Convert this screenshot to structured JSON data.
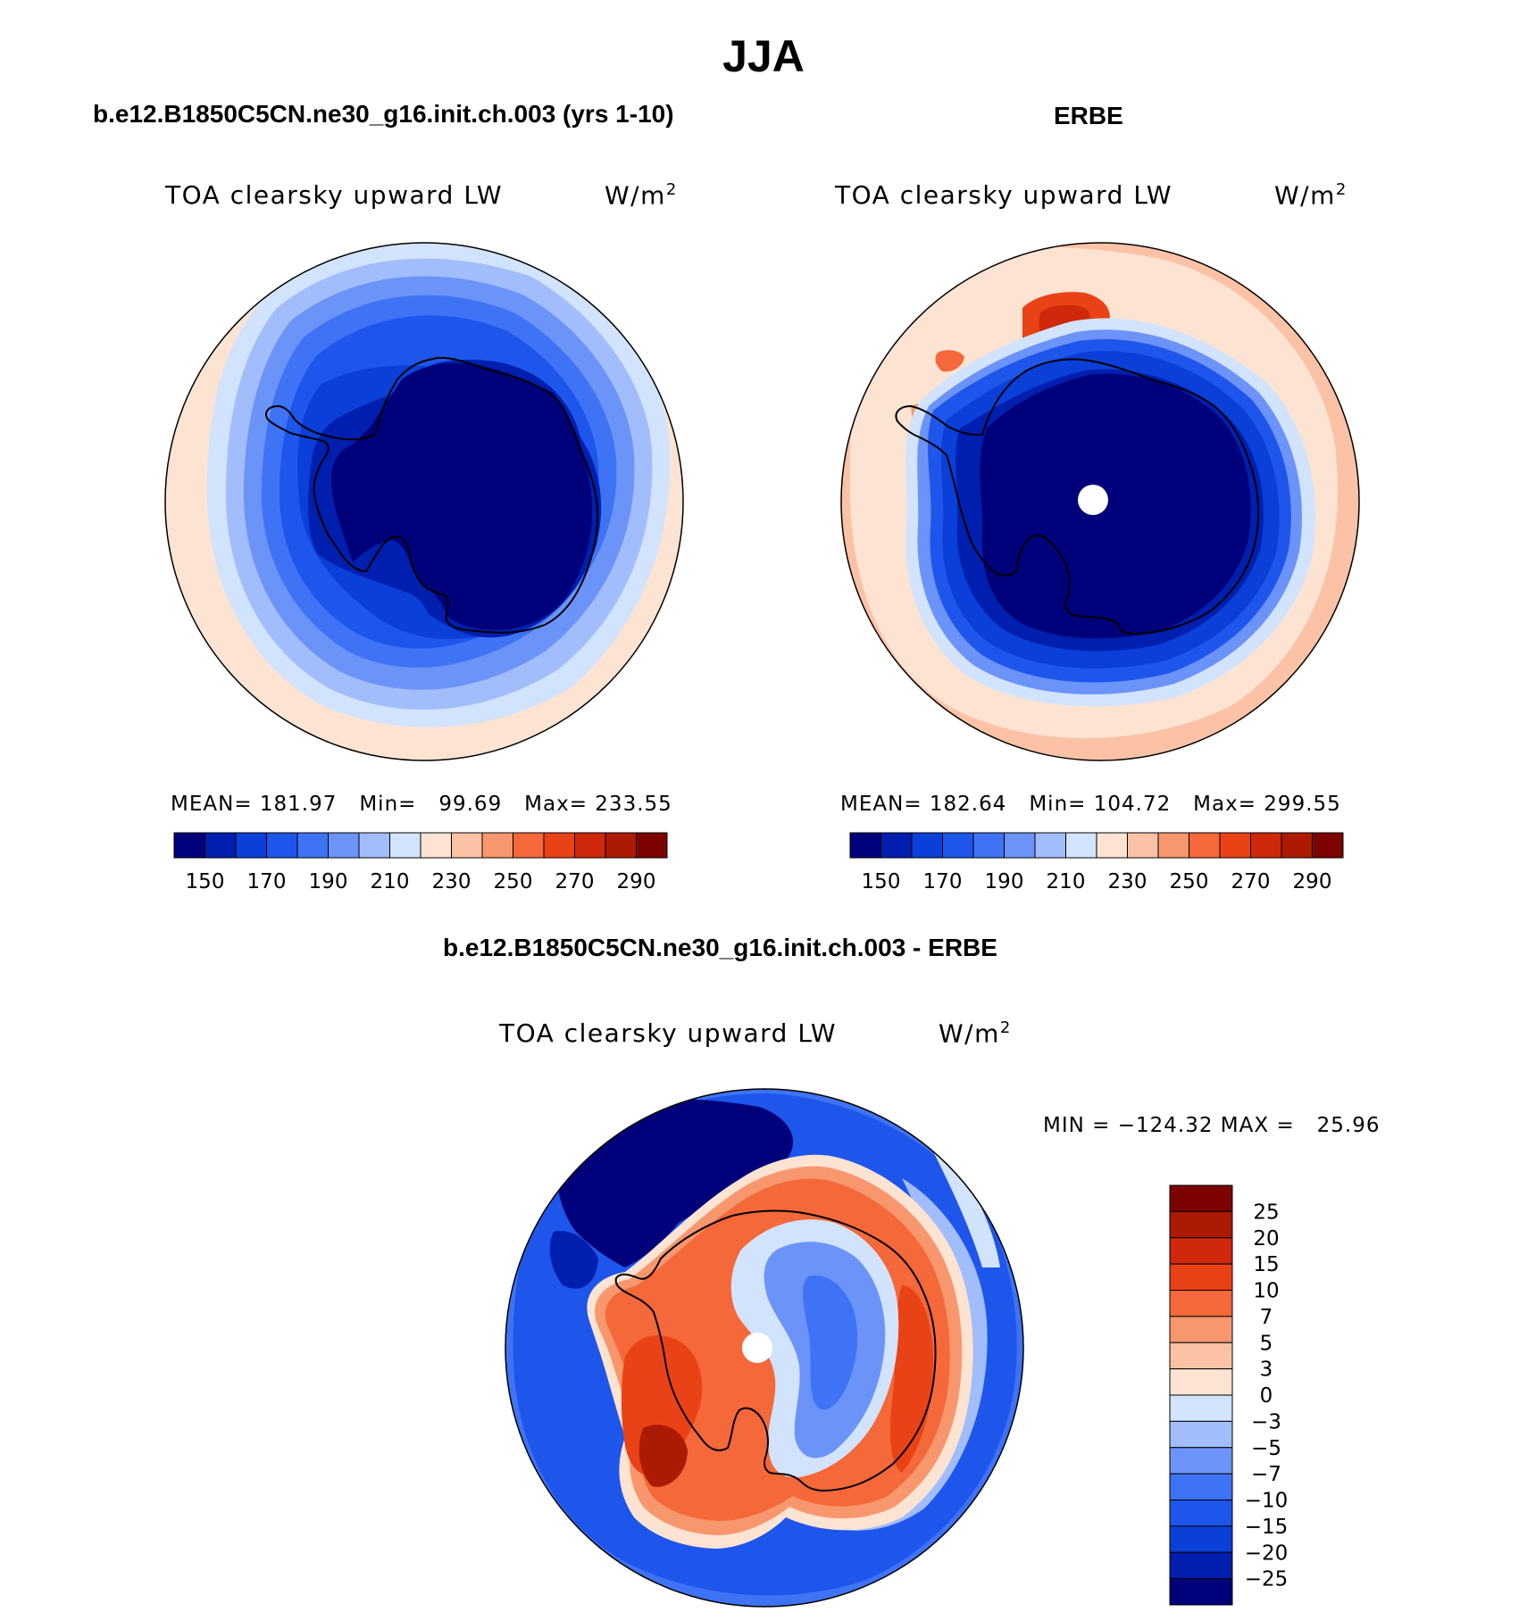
{
  "figure": {
    "season": "JJA",
    "model_title": "b.e12.B1850C5CN.ne30_g16.init.ch.003 (yrs 1-10)",
    "obs_title": "ERBE",
    "diff_title": "b.e12.B1850C5CN.ne30_g16.init.ch.003 - ERBE"
  },
  "panels": {
    "model": {
      "variable": "TOA clearsky upward LW",
      "units": "W/m",
      "units_exp": "2",
      "stats": {
        "mean_label": "MEAN=",
        "mean": "181.97",
        "min_label": "Min=",
        "min": "99.69",
        "max_label": "Max=",
        "max": "233.55"
      }
    },
    "obs": {
      "variable": "TOA clearsky upward LW",
      "units": "W/m",
      "units_exp": "2",
      "stats": {
        "mean_label": "MEAN=",
        "mean": "182.64",
        "min_label": "Min=",
        "min": "104.72",
        "max_label": "Max=",
        "max": "299.55"
      }
    },
    "diff": {
      "variable": "TOA clearsky upward LW",
      "units": "W/m",
      "units_exp": "2",
      "stats": {
        "min_label": "MIN =",
        "min": "−124.32",
        "max_label": "MAX =",
        "max": "25.96"
      }
    }
  },
  "colorbars": {
    "absolute": {
      "colors": [
        "#00007a",
        "#001fae",
        "#0a3fd8",
        "#1e56ec",
        "#3f73f5",
        "#6b93f8",
        "#a2bdfb",
        "#d2e3fd",
        "#fde3d2",
        "#fbc2a6",
        "#f8976d",
        "#f4683a",
        "#ea4217",
        "#d0280a",
        "#ad1a04",
        "#7d0300"
      ],
      "tick_labels": [
        "150",
        "170",
        "190",
        "210",
        "230",
        "250",
        "270",
        "290"
      ]
    },
    "difference": {
      "colors": [
        "#7d0300",
        "#ad1a04",
        "#d0280a",
        "#ea4217",
        "#f4683a",
        "#f8976d",
        "#fbc2a6",
        "#fde3d2",
        "#d2e3fd",
        "#a2bdfb",
        "#6b93f8",
        "#3f73f5",
        "#1e56ec",
        "#0a3fd8",
        "#001fae",
        "#00007a"
      ],
      "tick_labels": [
        "25",
        "20",
        "15",
        "10",
        "7",
        "5",
        "3",
        "0",
        "−3",
        "−5",
        "−7",
        "−10",
        "−15",
        "−20",
        "−25"
      ]
    }
  },
  "colors": {
    "deep_blue": "#00007a",
    "mid_blue": "#1e56ec",
    "light_blue": "#d2e3fd",
    "light_orange": "#fde3d2",
    "orange": "#f4683a",
    "deep_red": "#7d0300",
    "pole_missing": "#ffffff",
    "coastline": "#000000"
  }
}
